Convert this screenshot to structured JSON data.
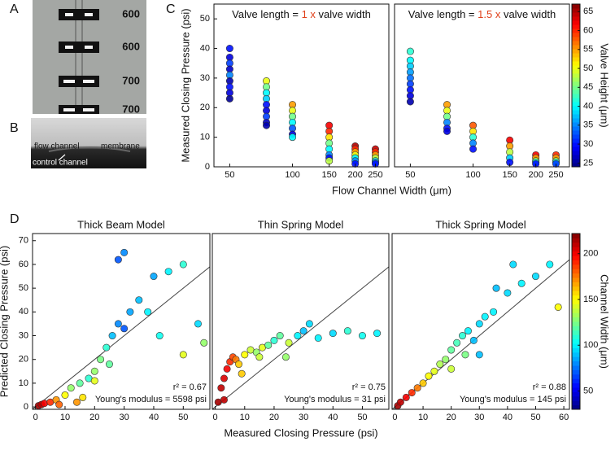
{
  "panel_labels": [
    "A",
    "B",
    "C",
    "D"
  ],
  "image_a": {
    "labels": [
      "600",
      "600",
      "700",
      "700"
    ]
  },
  "image_b": {
    "labels": [
      "flow channel",
      "membrane",
      "control channel"
    ]
  },
  "chart_data": [
    {
      "type": "scatter",
      "title": {
        "prefix": "Valve length = ",
        "emphasis": "1 x",
        "suffix": " valve width"
      },
      "emphasis_color": "#e0401a",
      "ylabel": "Measured Closing Pressure (psi)",
      "xlabel": "Flow Channel Width (μm)",
      "xscale": "log",
      "xlim": [
        42,
        290
      ],
      "xticks": [
        50,
        100,
        150,
        200,
        250
      ],
      "ylim": [
        0,
        55
      ],
      "yticks": [
        0,
        10,
        20,
        30,
        40,
        50
      ],
      "colormap": "jet",
      "clim": [
        24,
        67
      ],
      "x": [
        50,
        50,
        50,
        50,
        50,
        50,
        50,
        50,
        50,
        75,
        75,
        75,
        75,
        75,
        75,
        75,
        75,
        75,
        100,
        100,
        100,
        100,
        100,
        100,
        100,
        150,
        150,
        150,
        150,
        150,
        150,
        150,
        150,
        200,
        200,
        200,
        200,
        200,
        200,
        200,
        250,
        250,
        250,
        250,
        250,
        250,
        250
      ],
      "y": [
        40,
        37,
        35,
        33,
        31,
        29,
        27,
        25,
        23,
        29,
        27,
        25,
        23,
        21,
        19,
        17,
        15,
        14,
        21,
        19,
        17,
        15,
        13,
        11,
        10,
        14,
        12,
        10,
        8,
        6,
        4,
        3,
        2,
        7,
        6,
        5,
        4,
        3,
        2,
        1,
        6,
        5,
        4,
        3,
        2,
        1.5,
        1
      ],
      "c": [
        30,
        28,
        32,
        27,
        35,
        26,
        30,
        28,
        25,
        50,
        45,
        40,
        38,
        30,
        28,
        32,
        27,
        26,
        55,
        50,
        45,
        40,
        33,
        28,
        40,
        62,
        60,
        52,
        45,
        40,
        35,
        30,
        48,
        65,
        60,
        55,
        50,
        40,
        35,
        30,
        64,
        60,
        55,
        48,
        42,
        35,
        30
      ]
    },
    {
      "type": "scatter",
      "title": {
        "prefix": "Valve length = ",
        "emphasis": "1.5 x",
        "suffix": " valve width"
      },
      "emphasis_color": "#e0401a",
      "xscale": "log",
      "xlim": [
        42,
        290
      ],
      "xticks": [
        50,
        100,
        150,
        200,
        250
      ],
      "ylim": [
        0,
        55
      ],
      "colormap": "jet",
      "clim": [
        24,
        67
      ],
      "colorbar": {
        "label": "Valve Height (μm)",
        "ticks": [
          25,
          30,
          35,
          40,
          45,
          50,
          55,
          60,
          65
        ]
      },
      "x": [
        50,
        50,
        50,
        50,
        50,
        50,
        50,
        50,
        50,
        75,
        75,
        75,
        75,
        75,
        75,
        100,
        100,
        100,
        100,
        100,
        150,
        150,
        150,
        150,
        150,
        200,
        200,
        200,
        200,
        200,
        250,
        250,
        250,
        250,
        250
      ],
      "y": [
        39,
        36,
        34,
        32,
        30,
        28,
        26,
        24,
        22,
        21,
        19,
        17,
        15,
        13,
        12,
        14,
        12,
        10,
        8,
        6,
        9,
        7,
        5,
        3,
        1.5,
        4,
        3,
        2,
        1.5,
        1,
        4,
        3,
        2,
        1.5,
        1
      ],
      "c": [
        42,
        40,
        38,
        36,
        34,
        32,
        30,
        28,
        26,
        55,
        50,
        45,
        35,
        30,
        28,
        58,
        52,
        42,
        35,
        30,
        62,
        55,
        48,
        38,
        30,
        62,
        55,
        48,
        40,
        30,
        60,
        55,
        48,
        40,
        32
      ]
    },
    {
      "type": "scatter",
      "title": "Thick Beam Model",
      "ylabel": "Predicted Closing Pressure (psi)",
      "xlabel": "Measured Closing Pressure (psi)",
      "xlim": [
        -1,
        59
      ],
      "xticks": [
        0,
        10,
        20,
        30,
        40,
        50
      ],
      "ylim": [
        -1,
        73
      ],
      "yticks": [
        0,
        10,
        20,
        30,
        40,
        50,
        60,
        70
      ],
      "colormap": "jet",
      "clim": [
        30,
        222
      ],
      "identity_line": true,
      "annotations": [
        "r² = 0.67",
        "Young's modulus = 5598 psi"
      ],
      "x": [
        1,
        2,
        3,
        5,
        7,
        10,
        12,
        15,
        18,
        20,
        22,
        24,
        26,
        28,
        30,
        32,
        25,
        20,
        35,
        40,
        45,
        50,
        28,
        30,
        38,
        42,
        55,
        57,
        50,
        8,
        14,
        16
      ],
      "y": [
        0.5,
        1,
        1.5,
        2,
        3,
        5,
        8,
        10,
        12,
        15,
        20,
        25,
        30,
        35,
        33,
        40,
        18,
        11,
        45,
        55,
        57,
        60,
        62,
        65,
        40,
        30,
        35,
        27,
        22,
        1,
        2,
        4
      ],
      "c": [
        215,
        210,
        200,
        190,
        170,
        150,
        130,
        120,
        110,
        130,
        125,
        110,
        90,
        80,
        70,
        85,
        120,
        145,
        90,
        85,
        100,
        110,
        70,
        80,
        100,
        105,
        95,
        130,
        145,
        180,
        170,
        155
      ]
    },
    {
      "type": "scatter",
      "title": "Thin Spring Model",
      "xlim": [
        -1,
        59
      ],
      "xticks": [
        0,
        10,
        20,
        30,
        40,
        50
      ],
      "ylim": [
        -1,
        73
      ],
      "colormap": "jet",
      "clim": [
        30,
        222
      ],
      "identity_line": true,
      "annotations": [
        "r² = 0.75",
        "Young's modulus = 31 psi"
      ],
      "x": [
        1,
        2,
        3,
        4,
        5,
        6,
        7,
        8,
        10,
        12,
        14,
        16,
        18,
        20,
        22,
        25,
        28,
        30,
        35,
        40,
        45,
        50,
        55,
        3,
        9,
        15,
        24,
        32
      ],
      "y": [
        2,
        8,
        12,
        16,
        19,
        21,
        20,
        18,
        22,
        24,
        23,
        25,
        26,
        28,
        30,
        27,
        30,
        32,
        29,
        31,
        32,
        30,
        31,
        3,
        14,
        21,
        21,
        35
      ],
      "c": [
        215,
        210,
        205,
        200,
        190,
        185,
        175,
        160,
        150,
        140,
        130,
        145,
        120,
        110,
        120,
        140,
        100,
        90,
        100,
        95,
        110,
        105,
        100,
        210,
        160,
        140,
        130,
        95
      ]
    },
    {
      "type": "scatter",
      "title": "Thick Spring Model",
      "xlim": [
        -1,
        62
      ],
      "xticks": [
        0,
        10,
        20,
        30,
        40,
        50,
        60
      ],
      "ylim": [
        -1,
        73
      ],
      "colormap": "jet",
      "clim": [
        30,
        222
      ],
      "identity_line": true,
      "annotations": [
        "r² = 0.88",
        "Young's modulus = 145 psi"
      ],
      "colorbar": {
        "label": "Channel Width (μm)",
        "ticks": [
          50,
          100,
          150,
          200
        ]
      },
      "x": [
        1,
        2,
        4,
        6,
        8,
        10,
        12,
        14,
        16,
        18,
        20,
        22,
        24,
        26,
        28,
        30,
        32,
        35,
        40,
        45,
        50,
        55,
        58,
        42,
        36,
        20,
        25,
        30
      ],
      "y": [
        0.5,
        2,
        4,
        6,
        8,
        10,
        13,
        15,
        18,
        20,
        24,
        27,
        30,
        32,
        28,
        35,
        38,
        40,
        48,
        52,
        55,
        60,
        42,
        60,
        50,
        16,
        22,
        22
      ],
      "c": [
        215,
        210,
        200,
        190,
        175,
        160,
        150,
        145,
        135,
        130,
        120,
        115,
        110,
        100,
        90,
        95,
        100,
        100,
        95,
        100,
        95,
        100,
        150,
        95,
        90,
        140,
        125,
        90
      ]
    }
  ]
}
